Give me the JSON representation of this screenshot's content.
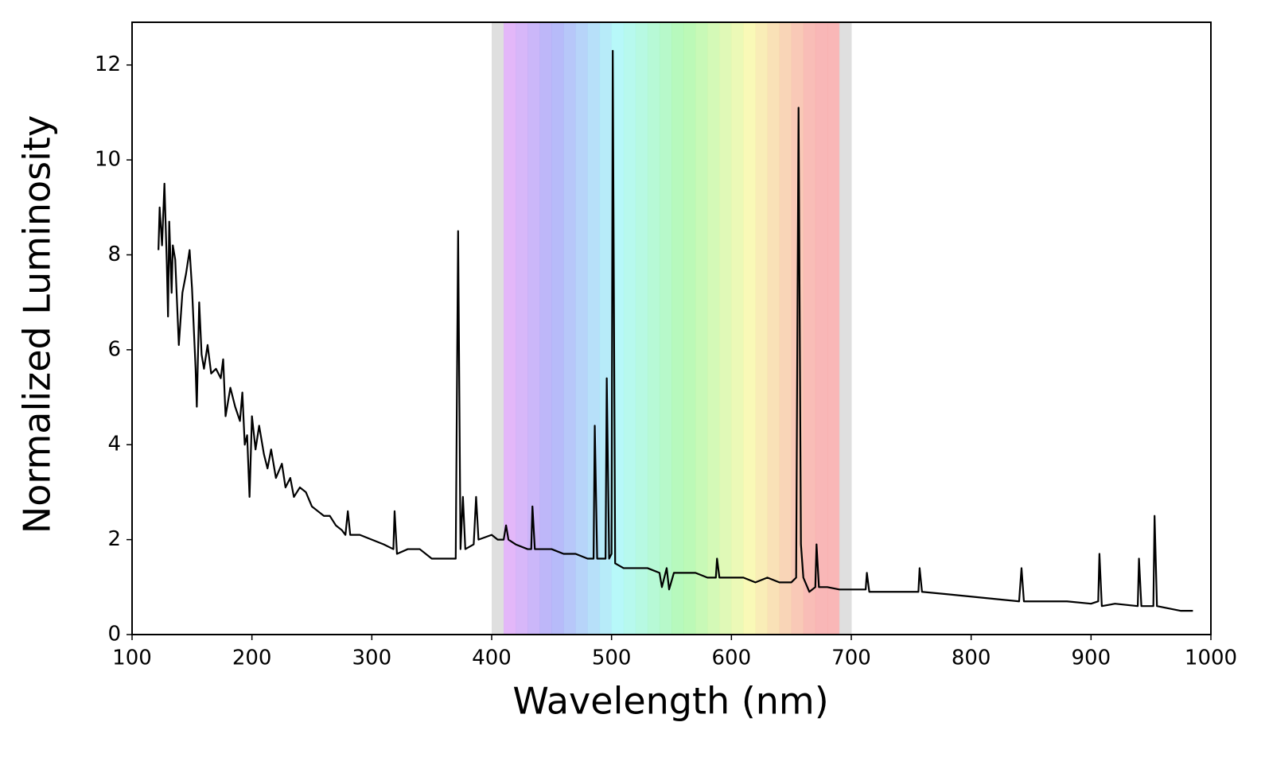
{
  "chart_data": {
    "type": "line",
    "xlabel": "Wavelength (nm)",
    "ylabel": "Normalized Luminosity",
    "x": [
      122,
      123,
      125,
      127,
      129,
      130,
      131,
      133,
      134,
      136,
      139,
      142,
      145,
      148,
      150,
      153,
      154,
      156,
      158,
      160,
      163,
      166,
      170,
      174,
      176,
      178,
      182,
      186,
      190,
      192,
      194,
      196,
      198,
      200,
      203,
      206,
      210,
      213,
      216,
      220,
      225,
      228,
      232,
      235,
      240,
      245,
      250,
      255,
      260,
      265,
      270,
      275,
      278,
      280,
      282,
      290,
      300,
      310,
      318,
      319,
      321,
      330,
      340,
      350,
      360,
      370,
      372,
      374,
      376,
      378,
      385,
      387,
      389,
      400,
      405,
      410,
      412,
      414,
      420,
      430,
      433,
      434,
      436,
      450,
      460,
      470,
      480,
      485,
      486,
      488,
      495,
      496,
      498,
      500,
      501,
      503,
      510,
      520,
      530,
      540,
      542,
      546,
      548,
      552,
      560,
      570,
      580,
      587,
      588,
      590,
      600,
      610,
      620,
      630,
      640,
      650,
      654,
      656,
      658,
      660,
      665,
      670,
      671,
      673,
      680,
      690,
      700,
      712,
      713,
      715,
      730,
      740,
      750,
      756,
      757,
      759,
      780,
      800,
      820,
      840,
      842,
      844,
      860,
      880,
      900,
      906,
      907,
      909,
      920,
      939,
      940,
      942,
      952,
      953,
      955,
      965,
      975,
      985
    ],
    "series": [
      {
        "color": "#000000",
        "values": [
          8.1,
          9.0,
          8.2,
          9.5,
          7.8,
          6.7,
          8.7,
          7.2,
          8.2,
          7.9,
          6.1,
          7.2,
          7.6,
          8.1,
          7.3,
          5.6,
          4.8,
          7.0,
          5.9,
          5.6,
          6.1,
          5.5,
          5.6,
          5.4,
          5.8,
          4.6,
          5.2,
          4.8,
          4.5,
          5.1,
          4.0,
          4.2,
          2.9,
          4.6,
          3.9,
          4.4,
          3.8,
          3.5,
          3.9,
          3.3,
          3.6,
          3.1,
          3.3,
          2.9,
          3.1,
          3.0,
          2.7,
          2.6,
          2.5,
          2.5,
          2.3,
          2.2,
          2.1,
          2.6,
          2.1,
          2.1,
          2.0,
          1.9,
          1.8,
          2.6,
          1.7,
          1.8,
          1.8,
          1.6,
          1.6,
          1.6,
          8.5,
          1.8,
          2.9,
          1.8,
          1.9,
          2.9,
          2.0,
          2.1,
          2.0,
          2.0,
          2.3,
          2.0,
          1.9,
          1.8,
          1.8,
          2.7,
          1.8,
          1.8,
          1.7,
          1.7,
          1.6,
          1.6,
          4.4,
          1.6,
          1.6,
          5.4,
          1.6,
          1.7,
          12.3,
          1.5,
          1.4,
          1.4,
          1.4,
          1.3,
          1.0,
          1.4,
          0.95,
          1.3,
          1.3,
          1.3,
          1.2,
          1.2,
          1.6,
          1.2,
          1.2,
          1.2,
          1.1,
          1.2,
          1.1,
          1.1,
          1.2,
          11.1,
          1.9,
          1.2,
          0.9,
          1.0,
          1.9,
          1.0,
          1.0,
          0.95,
          0.95,
          0.95,
          1.3,
          0.9,
          0.9,
          0.9,
          0.9,
          0.9,
          1.4,
          0.9,
          0.85,
          0.8,
          0.75,
          0.7,
          1.4,
          0.7,
          0.7,
          0.7,
          0.65,
          0.7,
          1.7,
          0.6,
          0.65,
          0.6,
          1.6,
          0.6,
          0.6,
          2.5,
          0.6,
          0.55,
          0.5,
          0.5
        ]
      }
    ],
    "spectrum_band": [
      400,
      700
    ],
    "xlim": [
      100,
      1000
    ],
    "xticks": [
      100,
      200,
      300,
      400,
      500,
      600,
      700,
      800,
      900,
      1000
    ],
    "ylim": [
      0,
      12.9
    ],
    "yticks": [
      0,
      2,
      4,
      6,
      8,
      10,
      12
    ]
  }
}
